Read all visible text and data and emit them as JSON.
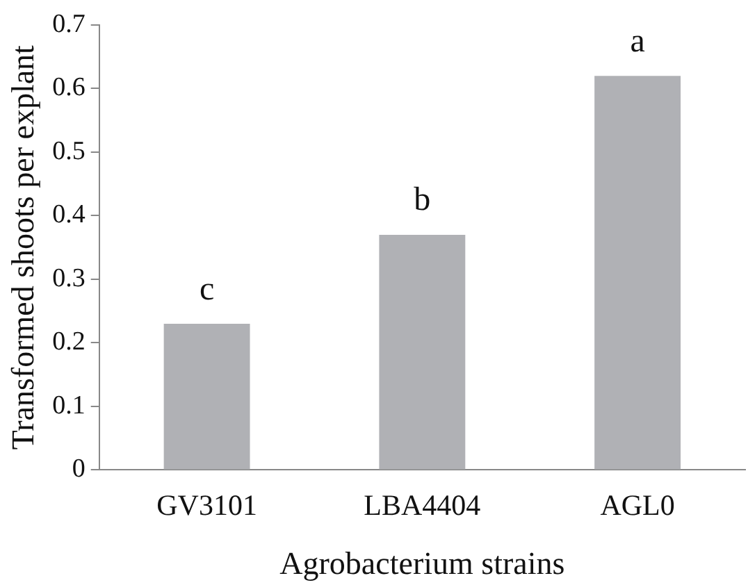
{
  "chart_data": {
    "type": "bar",
    "categories": [
      "GV3101",
      "LBA4404",
      "AGL0"
    ],
    "values": [
      0.23,
      0.37,
      0.62
    ],
    "color": "#b0b1b5",
    "xlabel": "Agrobacterium strains",
    "ylabel": "Transformed shoots per explant",
    "ylim": [
      0,
      0.7
    ],
    "yticks": [
      0,
      0.1,
      0.2,
      0.3,
      0.4,
      0.5,
      0.6,
      0.7
    ],
    "grid": false,
    "legend": false,
    "annotations": [
      {
        "text": "c",
        "x": "GV3101",
        "y": 0.23
      },
      {
        "text": "b",
        "x": "LBA4404",
        "y": 0.37
      },
      {
        "text": "a",
        "x": "AGL0",
        "y": 0.62
      }
    ]
  }
}
